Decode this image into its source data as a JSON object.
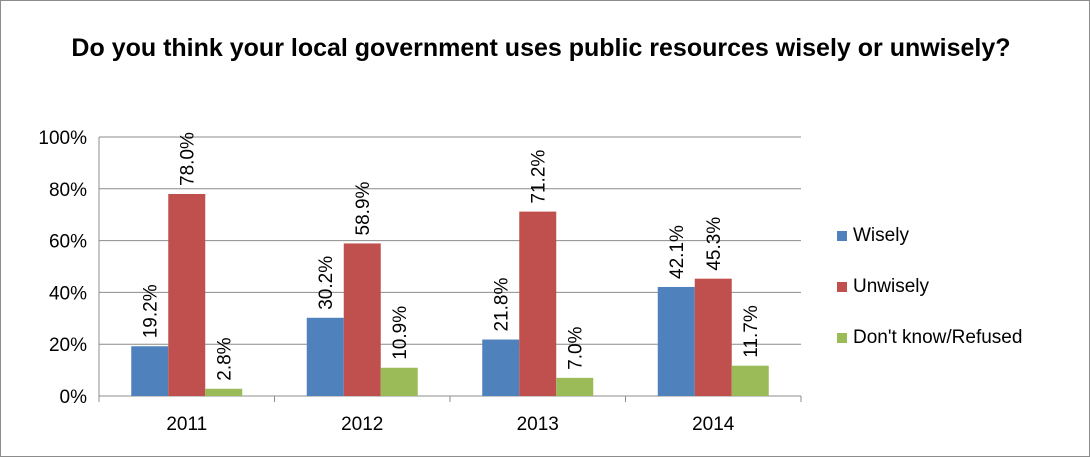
{
  "chart_data": {
    "type": "bar",
    "title": "Do you think your local government uses public resources wisely or unwisely?",
    "categories": [
      "2011",
      "2012",
      "2013",
      "2014"
    ],
    "series": [
      {
        "name": "Wisely",
        "color": "#4f81bd",
        "values": [
          19.2,
          30.2,
          21.8,
          42.1
        ],
        "labels": [
          "19.2%",
          "30.2%",
          "21.8%",
          "42.1%"
        ]
      },
      {
        "name": "Unwisely",
        "color": "#c0504d",
        "values": [
          78.0,
          58.9,
          71.2,
          45.3
        ],
        "labels": [
          "78.0%",
          "58.9%",
          "71.2%",
          "45.3%"
        ]
      },
      {
        "name": "Don't know/Refused",
        "color": "#9bbb59",
        "values": [
          2.8,
          10.9,
          7.0,
          11.7
        ],
        "labels": [
          "2.8%",
          "10.9%",
          "7.0%",
          "11.7%"
        ]
      }
    ],
    "ylim": [
      0,
      100
    ],
    "yticks": [
      "0%",
      "20%",
      "40%",
      "60%",
      "80%",
      "100%"
    ],
    "grid": true,
    "legend": "right"
  }
}
